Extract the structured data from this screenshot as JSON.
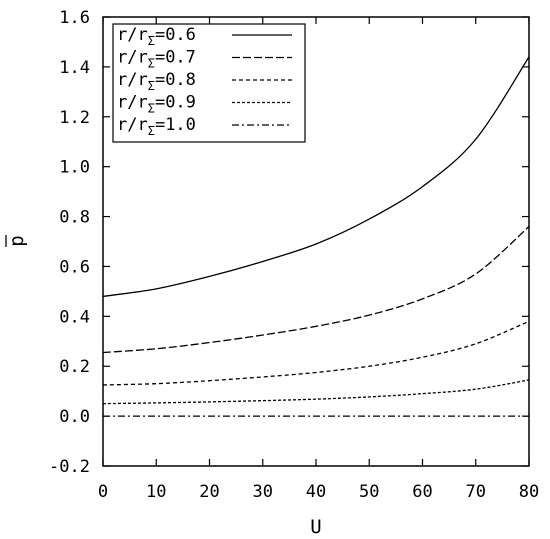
{
  "chart_data": {
    "type": "line",
    "xlabel": "U",
    "ylabel": "p",
    "ylabel_overbar": true,
    "xlim": [
      0,
      80
    ],
    "ylim": [
      -0.2,
      1.6
    ],
    "xticks": [
      "0",
      "10",
      "20",
      "30",
      "40",
      "50",
      "60",
      "70",
      "80"
    ],
    "yticks": [
      "-0.2",
      "0.0",
      "0.2",
      "0.4",
      "0.6",
      "0.8",
      "1.0",
      "1.2",
      "1.4",
      "1.6"
    ],
    "grid": false,
    "legend_position": "top-left",
    "x": [
      0,
      10,
      20,
      30,
      40,
      50,
      60,
      70,
      80
    ],
    "series": [
      {
        "name": "r/rΣ=0.6",
        "label_main": "r/r",
        "label_sub": "Σ",
        "label_value": "=0.6",
        "dash": "solid",
        "values": [
          0.48,
          0.51,
          0.56,
          0.62,
          0.69,
          0.79,
          0.92,
          1.11,
          1.44
        ]
      },
      {
        "name": "r/rΣ=0.7",
        "label_main": "r/r",
        "label_sub": "Σ",
        "label_value": "=0.7",
        "dash": "long-dash",
        "values": [
          0.255,
          0.27,
          0.295,
          0.325,
          0.36,
          0.405,
          0.47,
          0.57,
          0.76
        ]
      },
      {
        "name": "r/rΣ=0.8",
        "label_main": "r/r",
        "label_sub": "Σ",
        "label_value": "=0.8",
        "dash": "short-dash",
        "values": [
          0.125,
          0.13,
          0.142,
          0.157,
          0.175,
          0.2,
          0.236,
          0.29,
          0.38
        ]
      },
      {
        "name": "r/rΣ=0.9",
        "label_main": "r/r",
        "label_sub": "Σ",
        "label_value": "=0.9",
        "dash": "dotted-dash",
        "values": [
          0.05,
          0.053,
          0.057,
          0.062,
          0.068,
          0.077,
          0.09,
          0.108,
          0.145
        ]
      },
      {
        "name": "r/rΣ=1.0",
        "label_main": "r/r",
        "label_sub": "Σ",
        "label_value": "=1.0",
        "dash": "dash-dot",
        "values": [
          0.0,
          0.0,
          0.0,
          0.0,
          0.0,
          0.0,
          0.0,
          0.0,
          0.0
        ]
      }
    ]
  }
}
